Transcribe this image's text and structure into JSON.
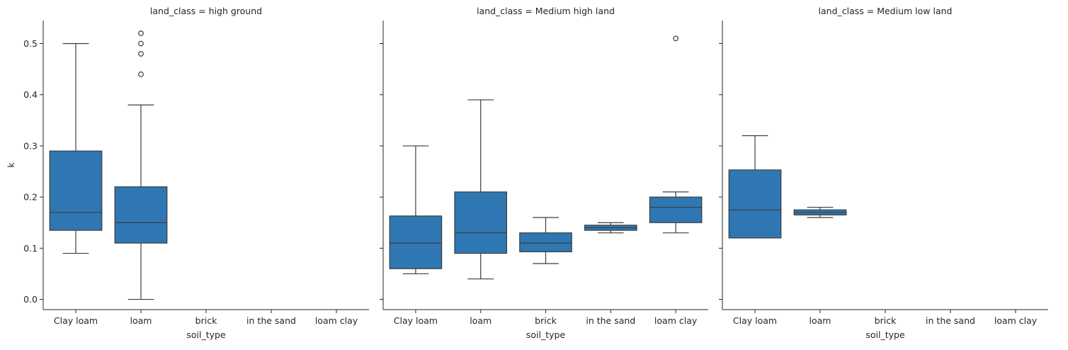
{
  "chart_data": {
    "type": "box",
    "facet_variable": "land_class",
    "categories": [
      "Clay loam",
      "loam",
      "brick",
      "in the sand",
      "loam clay"
    ],
    "xlabel": "soil_type",
    "ylabel": "k",
    "ylim": [
      -0.02,
      0.545
    ],
    "yticks": [
      0.0,
      0.1,
      0.2,
      0.3,
      0.4,
      0.5
    ],
    "ytick_labels": [
      "0.0",
      "0.1",
      "0.2",
      "0.3",
      "0.4",
      "0.5"
    ],
    "box_color": "#2f77b2",
    "line_color": "#3d3d3d",
    "panels": [
      {
        "title": "land_class = high ground",
        "boxes": [
          {
            "category": "Clay loam",
            "whisker_low": 0.09,
            "q1": 0.135,
            "median": 0.17,
            "q3": 0.29,
            "whisker_high": 0.5,
            "outliers": []
          },
          {
            "category": "loam",
            "whisker_low": 0.0,
            "q1": 0.11,
            "median": 0.15,
            "q3": 0.22,
            "whisker_high": 0.38,
            "outliers": [
              0.44,
              0.48,
              0.5,
              0.52
            ]
          }
        ]
      },
      {
        "title": "land_class = Medium high land",
        "boxes": [
          {
            "category": "Clay loam",
            "whisker_low": 0.05,
            "q1": 0.06,
            "median": 0.11,
            "q3": 0.163,
            "whisker_high": 0.3,
            "outliers": []
          },
          {
            "category": "loam",
            "whisker_low": 0.04,
            "q1": 0.09,
            "median": 0.13,
            "q3": 0.21,
            "whisker_high": 0.39,
            "outliers": []
          },
          {
            "category": "brick",
            "whisker_low": 0.07,
            "q1": 0.093,
            "median": 0.11,
            "q3": 0.13,
            "whisker_high": 0.16,
            "outliers": []
          },
          {
            "category": "in the sand",
            "whisker_low": 0.13,
            "q1": 0.135,
            "median": 0.14,
            "q3": 0.145,
            "whisker_high": 0.15,
            "outliers": []
          },
          {
            "category": "loam clay",
            "whisker_low": 0.13,
            "q1": 0.15,
            "median": 0.18,
            "q3": 0.2,
            "whisker_high": 0.21,
            "outliers": [
              0.51
            ]
          }
        ]
      },
      {
        "title": "land_class = Medium low land",
        "boxes": [
          {
            "category": "Clay loam",
            "whisker_low": 0.12,
            "q1": 0.12,
            "median": 0.175,
            "q3": 0.253,
            "whisker_high": 0.32,
            "outliers": []
          },
          {
            "category": "loam",
            "whisker_low": 0.16,
            "q1": 0.165,
            "median": 0.17,
            "q3": 0.175,
            "whisker_high": 0.18,
            "outliers": []
          }
        ]
      }
    ]
  }
}
